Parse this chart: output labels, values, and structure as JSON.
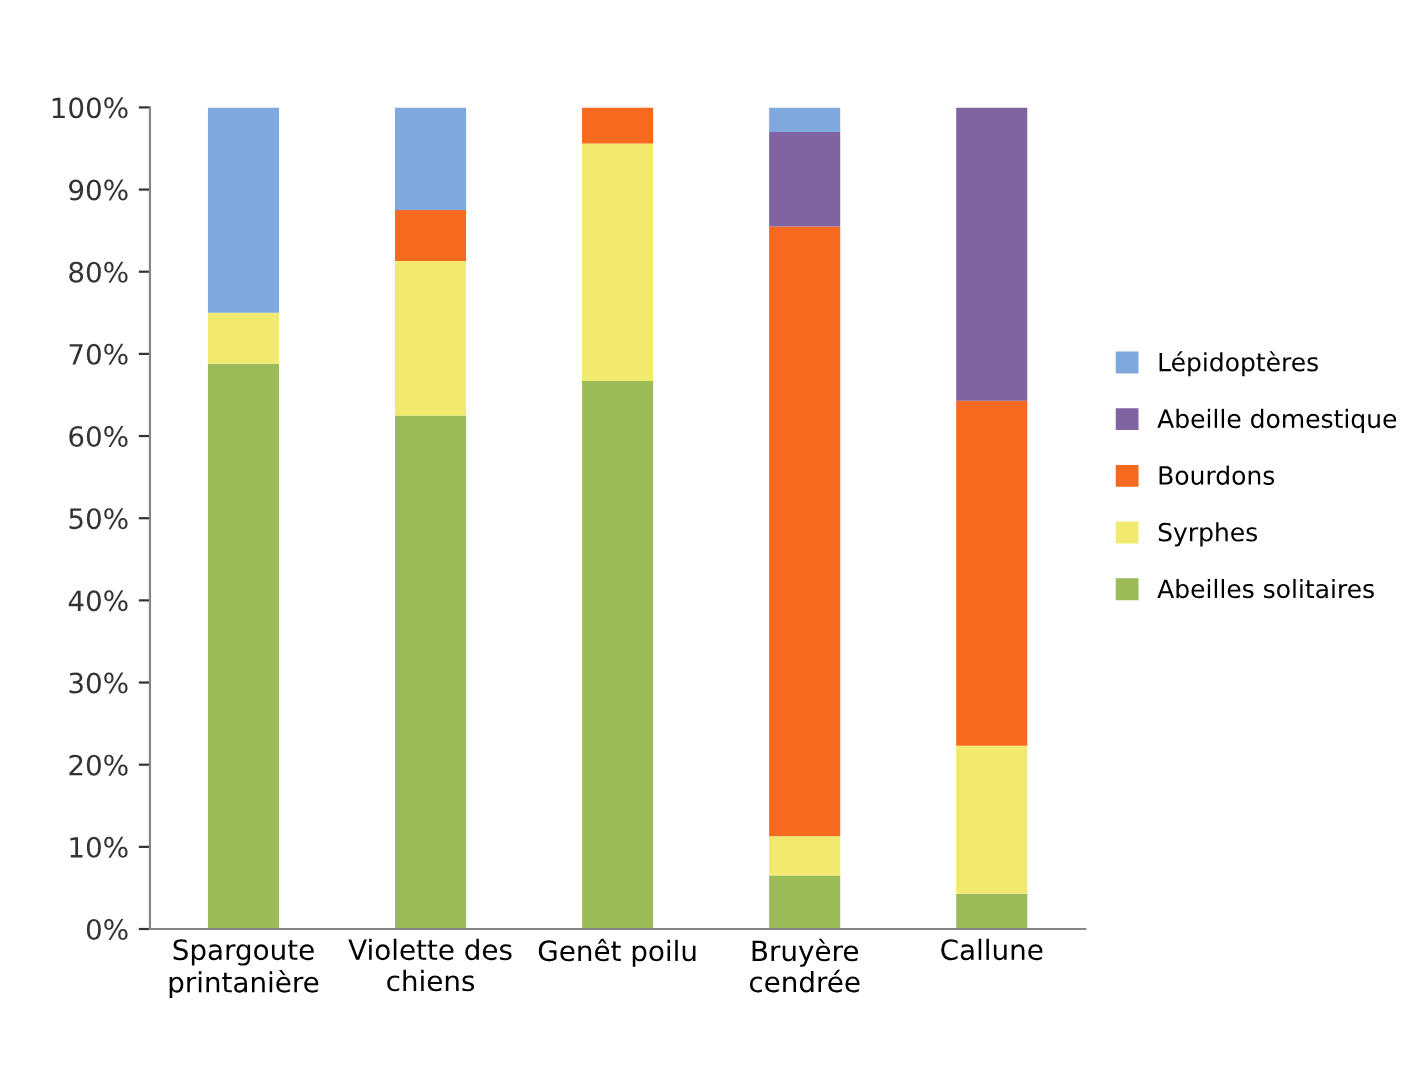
{
  "chart_data": {
    "type": "bar",
    "stacked": true,
    "categories": [
      "Spargoute\nprintanière",
      "Violette des\nchiens",
      "Genêt poilu",
      "Bruyère\ncendrée",
      "Callune"
    ],
    "series": [
      {
        "name": "Abeilles solitaires",
        "color": "#9bbb59",
        "values": [
          68.8,
          62.5,
          66.7,
          6.5,
          4.3
        ]
      },
      {
        "name": "Syrphes",
        "color": "#f2ea6e",
        "values": [
          6.2,
          18.8,
          28.9,
          4.8,
          18
        ]
      },
      {
        "name": "Bourdons",
        "color": "#f56a1e",
        "values": [
          null,
          6.2,
          4.4,
          74.2,
          42
        ]
      },
      {
        "name": "Abeille domestique",
        "color": "#8064a2",
        "values": [
          null,
          null,
          null,
          11.5,
          35.7
        ]
      },
      {
        "name": "Lépidoptères",
        "color": "#7fa8dc",
        "values": [
          25,
          12.5,
          null,
          3,
          null
        ]
      }
    ],
    "ylim": [
      0,
      100
    ],
    "yticks": [
      {
        "value": 0,
        "label": "0%"
      },
      {
        "value": 10,
        "label": "10%"
      },
      {
        "value": 20,
        "label": "20%"
      },
      {
        "value": 30,
        "label": "30%"
      },
      {
        "value": 40,
        "label": "40%"
      },
      {
        "value": 50,
        "label": "50%"
      },
      {
        "value": 60,
        "label": "60%"
      },
      {
        "value": 70,
        "label": "70%"
      },
      {
        "value": 80,
        "label": "80%"
      },
      {
        "value": 90,
        "label": "90%"
      },
      {
        "value": 100,
        "label": "100%"
      }
    ],
    "grid": false,
    "legend": "right"
  }
}
